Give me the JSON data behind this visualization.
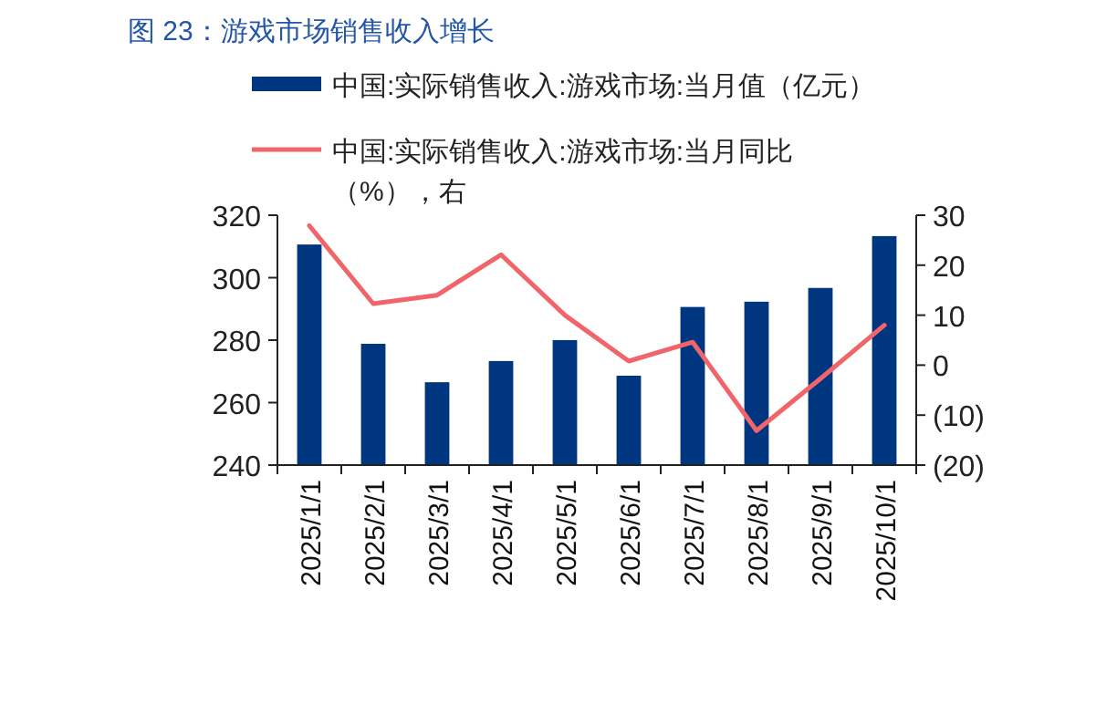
{
  "chart_data": {
    "type": "bar",
    "title": "图 23：游戏市场销售收入增长",
    "categories": [
      "2025/1/1",
      "2025/2/1",
      "2025/3/1",
      "2025/4/1",
      "2025/5/1",
      "2025/6/1",
      "2025/7/1",
      "2025/8/1",
      "2025/9/1",
      "2025/10/1"
    ],
    "series": [
      {
        "name": "中国:实际销售收入:游戏市场:当月值（亿元）",
        "color": "#003580",
        "values": [
          310.8,
          279.0,
          266.7,
          273.5,
          280.2,
          268.8,
          290.8,
          292.5,
          296.9,
          313.5
        ]
      },
      {
        "name": "中国:实际销售收入:游戏市场:当月同比（%），右",
        "type": "line",
        "axis": "y2",
        "color": "#f0646a",
        "values": [
          27.9,
          12.3,
          14.0,
          22.1,
          10.0,
          0.8,
          4.6,
          -13.1,
          -2.7,
          8.0
        ]
      }
    ],
    "ylim": [
      240,
      320
    ],
    "yticks": [
      240,
      260,
      280,
      300,
      320
    ],
    "y2lim": [
      -20,
      30
    ],
    "y2ticks": [
      {
        "value": -20,
        "label": "(20)"
      },
      {
        "value": -10,
        "label": "(10)"
      },
      0,
      10,
      20,
      30
    ],
    "legend": "top",
    "grid": false
  }
}
